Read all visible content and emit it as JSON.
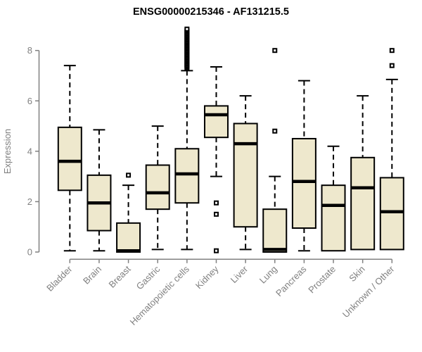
{
  "title": "ENSG00000215346 - AF131215.5",
  "chart_data": {
    "type": "boxplot",
    "title": "ENSG00000215346 - AF131215.5",
    "ylabel": "Expression",
    "yticks": [
      0,
      2,
      4,
      6,
      8
    ],
    "ylim": [
      0,
      8.9
    ],
    "grid": false,
    "categories": [
      "Bladder",
      "Brain",
      "Breast",
      "Gastric",
      "Hematopoietic cells",
      "Kidney",
      "Liver",
      "Lung",
      "Pancreas",
      "Prostate",
      "Skin",
      "Unknown / Other"
    ],
    "series": [
      {
        "category": "Bladder",
        "whisker_low": 0.05,
        "q1": 2.45,
        "median": 3.6,
        "q3": 4.95,
        "whisker_high": 7.4,
        "outliers": []
      },
      {
        "category": "Brain",
        "whisker_low": 0.05,
        "q1": 0.85,
        "median": 1.95,
        "q3": 3.05,
        "whisker_high": 4.85,
        "outliers": []
      },
      {
        "category": "Breast",
        "whisker_low": 0.0,
        "q1": 0.0,
        "median": 0.05,
        "q3": 1.15,
        "whisker_high": 2.65,
        "outliers": [
          3.05
        ]
      },
      {
        "category": "Gastric",
        "whisker_low": 0.1,
        "q1": 1.7,
        "median": 2.35,
        "q3": 3.45,
        "whisker_high": 5.0,
        "outliers": []
      },
      {
        "category": "Hematopoietic cells",
        "whisker_low": 0.1,
        "q1": 1.95,
        "median": 3.1,
        "q3": 4.1,
        "whisker_high": 7.2,
        "outliers": [
          7.3,
          7.35,
          7.4,
          7.45,
          7.5,
          7.55,
          7.6,
          7.65,
          7.7,
          7.75,
          7.8,
          7.85,
          7.9,
          7.95,
          8.0,
          8.05,
          8.1,
          8.15,
          8.2,
          8.25,
          8.3,
          8.35,
          8.4,
          8.45,
          8.5,
          8.55,
          8.6,
          8.65,
          8.7,
          8.75,
          8.8,
          8.85
        ]
      },
      {
        "category": "Kidney",
        "whisker_low": 3.0,
        "q1": 4.55,
        "median": 5.45,
        "q3": 5.8,
        "whisker_high": 7.35,
        "outliers": [
          1.95,
          1.5,
          0.05
        ]
      },
      {
        "category": "Liver",
        "whisker_low": 0.1,
        "q1": 1.0,
        "median": 4.3,
        "q3": 5.1,
        "whisker_high": 6.2,
        "outliers": []
      },
      {
        "category": "Lung",
        "whisker_low": 0.0,
        "q1": 0.0,
        "median": 0.1,
        "q3": 1.7,
        "whisker_high": 3.0,
        "outliers": [
          4.8,
          8.0
        ]
      },
      {
        "category": "Pancreas",
        "whisker_low": 0.05,
        "q1": 0.95,
        "median": 2.8,
        "q3": 4.5,
        "whisker_high": 6.8,
        "outliers": []
      },
      {
        "category": "Prostate",
        "whisker_low": 0.05,
        "q1": 0.05,
        "median": 1.85,
        "q3": 2.65,
        "whisker_high": 4.2,
        "outliers": []
      },
      {
        "category": "Skin",
        "whisker_low": 0.1,
        "q1": 0.1,
        "median": 2.55,
        "q3": 3.75,
        "whisker_high": 6.2,
        "outliers": []
      },
      {
        "category": "Unknown / Other",
        "whisker_low": 0.1,
        "q1": 0.1,
        "median": 1.6,
        "q3": 2.95,
        "whisker_high": 6.85,
        "outliers": [
          7.4,
          8.0
        ]
      }
    ],
    "colors": {
      "box_fill": "#EEE8CD",
      "box_border": "#000000",
      "median": "#000000",
      "whisker": "#000000",
      "axis": "#808080",
      "tick_label": "#808080",
      "title": "#000000",
      "background": "#ffffff"
    }
  }
}
